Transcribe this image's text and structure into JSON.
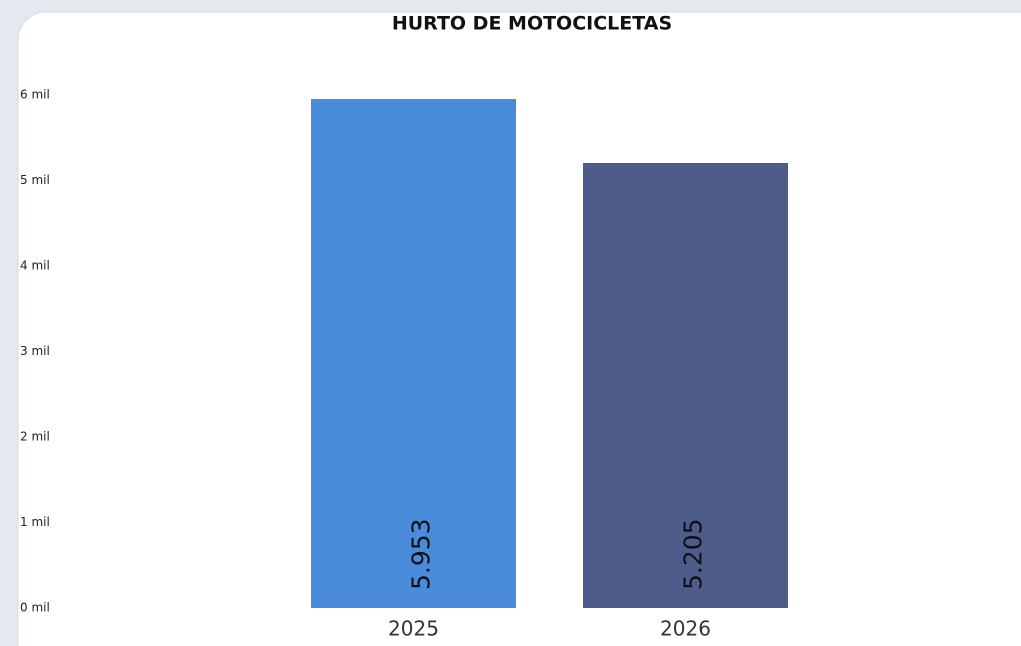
{
  "chart_data": {
    "type": "bar",
    "title": "HURTO DE MOTOCICLETAS",
    "categories": [
      "2025",
      "2026"
    ],
    "values": [
      5953,
      5205
    ],
    "value_labels": [
      "5.953",
      "5.205"
    ],
    "colors": [
      "#4a8cdb",
      "#4d5c8a"
    ],
    "ylim": [
      0,
      6000
    ],
    "yticks": [
      {
        "value": 0,
        "label": "0 mil"
      },
      {
        "value": 1000,
        "label": "1 mil"
      },
      {
        "value": 2000,
        "label": "2 mil"
      },
      {
        "value": 3000,
        "label": "3 mil"
      },
      {
        "value": 4000,
        "label": "4 mil"
      },
      {
        "value": 5000,
        "label": "5 mil"
      },
      {
        "value": 6000,
        "label": "6 mil"
      }
    ],
    "grid": false
  }
}
